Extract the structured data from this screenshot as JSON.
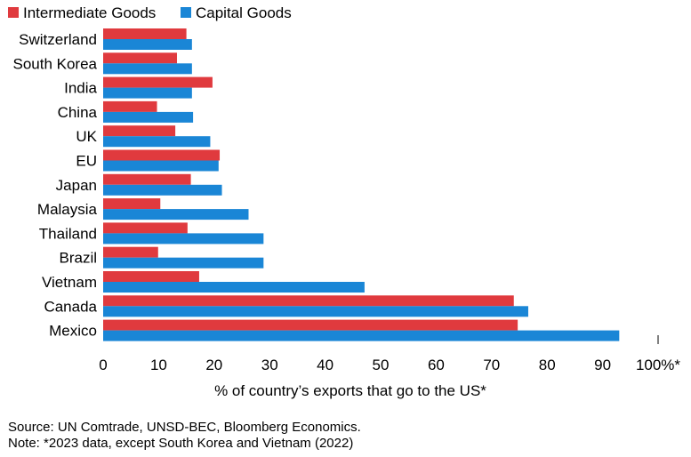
{
  "chart_data": {
    "type": "bar",
    "orientation": "horizontal",
    "categories": [
      "Switzerland",
      "South Korea",
      "India",
      "China",
      "UK",
      "EU",
      "Japan",
      "Malaysia",
      "Thailand",
      "Brazil",
      "Vietnam",
      "Canada",
      "Mexico"
    ],
    "series": [
      {
        "name": "Intermediate Goods",
        "color": "#e03a3e",
        "values": [
          15,
          13.3,
          19.7,
          9.7,
          13,
          21,
          15.8,
          10.3,
          15.2,
          9.9,
          17.3,
          74,
          74.7
        ]
      },
      {
        "name": "Capital Goods",
        "color": "#1a86d6",
        "values": [
          16,
          16,
          16,
          16.2,
          19.3,
          20.8,
          21.4,
          26.2,
          28.9,
          28.9,
          47.1,
          76.6,
          93
        ]
      }
    ],
    "xlabel": "% of country’s exports that go to the US*",
    "xticks": [
      "0",
      "10",
      "20",
      "30",
      "40",
      "50",
      "60",
      "70",
      "80",
      "90",
      "100%*"
    ],
    "xlim": [
      0,
      100
    ],
    "legend": "top-left",
    "grid": false
  },
  "footer": {
    "source": "Source: UN Comtrade, UNSD-BEC, Bloomberg Economics.",
    "note": "Note: *2023 data, except South Korea and Vietnam (2022)"
  }
}
